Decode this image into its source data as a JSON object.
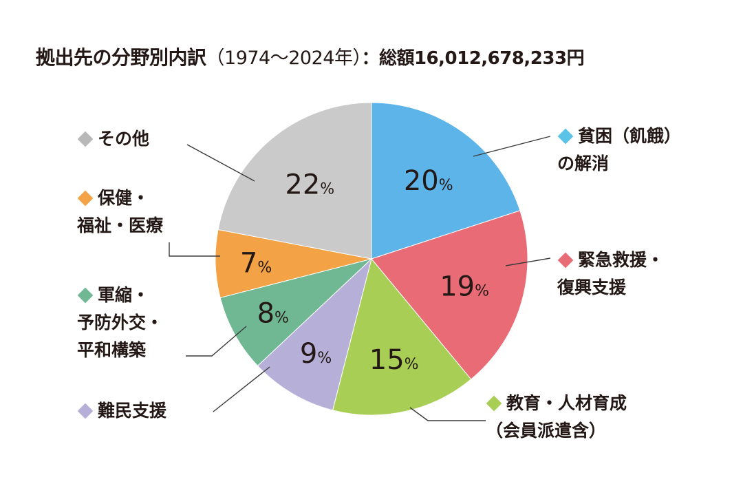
{
  "title": {
    "main": "拠出先の分野別内訳",
    "period": "（1974～2024年）",
    "total": "：総額16,012,678,233円"
  },
  "chart_data": {
    "type": "pie",
    "start_angle_deg": 0,
    "direction": "clockwise",
    "slices": [
      {
        "id": "poverty",
        "label_lines": [
          "貧困（飢餓）",
          "の解消"
        ],
        "value": 20,
        "value_label": "20",
        "color": "#5db4e8",
        "marker_color": "#5bc4e6"
      },
      {
        "id": "emergency",
        "label_lines": [
          "緊急救援・",
          "復興支援"
        ],
        "value": 19,
        "value_label": "19",
        "color": "#e96b76",
        "marker_color": "#e96b76"
      },
      {
        "id": "education",
        "label_lines": [
          "教育・人材育成",
          "（会員派遣含）"
        ],
        "value": 15,
        "value_label": "15",
        "color": "#a9ce55",
        "marker_color": "#a9ce55"
      },
      {
        "id": "refugee",
        "label_lines": [
          "難民支援"
        ],
        "value": 9,
        "value_label": "9",
        "color": "#b6b0d8",
        "marker_color": "#b6b0d8"
      },
      {
        "id": "peace",
        "label_lines": [
          "軍縮・",
          "予防外交・",
          "平和構築"
        ],
        "value": 8,
        "value_label": "8",
        "color": "#6fb893",
        "marker_color": "#6fb893"
      },
      {
        "id": "health",
        "label_lines": [
          "保健・",
          "福祉・医療"
        ],
        "value": 7,
        "value_label": "7",
        "color": "#f3a246",
        "marker_color": "#f3a246"
      },
      {
        "id": "other",
        "label_lines": [
          "その他"
        ],
        "value": 22,
        "value_label": "22",
        "color": "#cacaca",
        "marker_color": "#b8b8b8"
      }
    ],
    "unit": "%"
  }
}
